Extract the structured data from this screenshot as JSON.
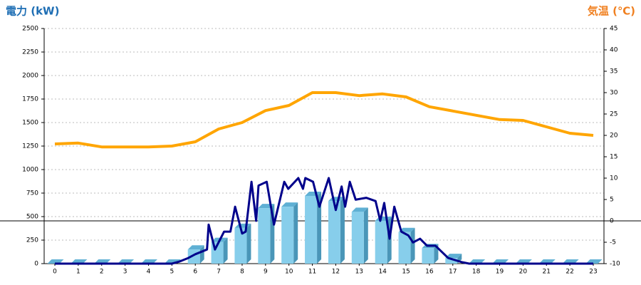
{
  "chart_data": {
    "type": "bar-line",
    "title_left": "電力 (kW)",
    "title_right": "気温 (℃)",
    "categories": [
      "0",
      "1",
      "2",
      "3",
      "4",
      "5",
      "6",
      "7",
      "8",
      "9",
      "10",
      "11",
      "12",
      "13",
      "14",
      "15",
      "16",
      "17",
      "18",
      "19",
      "20",
      "21",
      "22",
      "23"
    ],
    "ylim": [
      0,
      2500
    ],
    "yticks": [
      0,
      250,
      500,
      750,
      1000,
      1250,
      1500,
      1750,
      2000,
      2250,
      2500
    ],
    "y2lim": [
      -10,
      45
    ],
    "y2ticks": [
      -10,
      -5,
      0,
      5,
      10,
      15,
      20,
      25,
      30,
      35,
      40,
      45
    ],
    "y2_baseline": 0,
    "grid": true,
    "series": [
      {
        "type": "bar",
        "color": "#87ceeb",
        "values": [
          0,
          0,
          0,
          0,
          0,
          0,
          150,
          230,
          380,
          590,
          605,
          720,
          665,
          550,
          455,
          335,
          165,
          60,
          0,
          0,
          0,
          0,
          0,
          0
        ]
      },
      {
        "type": "line",
        "color": "#00008b",
        "x": [
          0,
          5,
          5.3,
          5.7,
          6,
          6.5,
          6.57,
          6.84,
          7.23,
          7.5,
          7.7,
          8.0,
          8.15,
          8.4,
          8.6,
          8.7,
          9.05,
          9.36,
          9.8,
          9.97,
          10.4,
          10.6,
          10.7,
          11.03,
          11.3,
          11.7,
          12.0,
          12.25,
          12.4,
          12.6,
          12.85,
          13.3,
          13.7,
          13.9,
          14.07,
          14.3,
          14.5,
          14.8,
          15.1,
          15.3,
          15.6,
          15.9,
          16.26,
          16.8,
          17.4,
          17.7,
          23
        ],
        "values": [
          0,
          0,
          20,
          60,
          100,
          150,
          415,
          150,
          340,
          340,
          605,
          320,
          340,
          870,
          455,
          830,
          870,
          415,
          870,
          795,
          910,
          795,
          910,
          870,
          605,
          910,
          570,
          820,
          605,
          870,
          680,
          700,
          665,
          455,
          645,
          265,
          605,
          340,
          300,
          225,
          265,
          190,
          190,
          60,
          15,
          0,
          0
        ]
      },
      {
        "type": "line",
        "axis": "y2",
        "color": "#ffa500",
        "values": [
          18,
          18.2,
          17.3,
          17.3,
          17.3,
          17.5,
          18.5,
          21.5,
          23,
          25.8,
          27,
          30,
          30,
          29.3,
          29.7,
          29,
          26.7,
          25.7,
          24.7,
          23.7,
          23.5,
          22,
          20.5,
          20
        ]
      }
    ]
  }
}
